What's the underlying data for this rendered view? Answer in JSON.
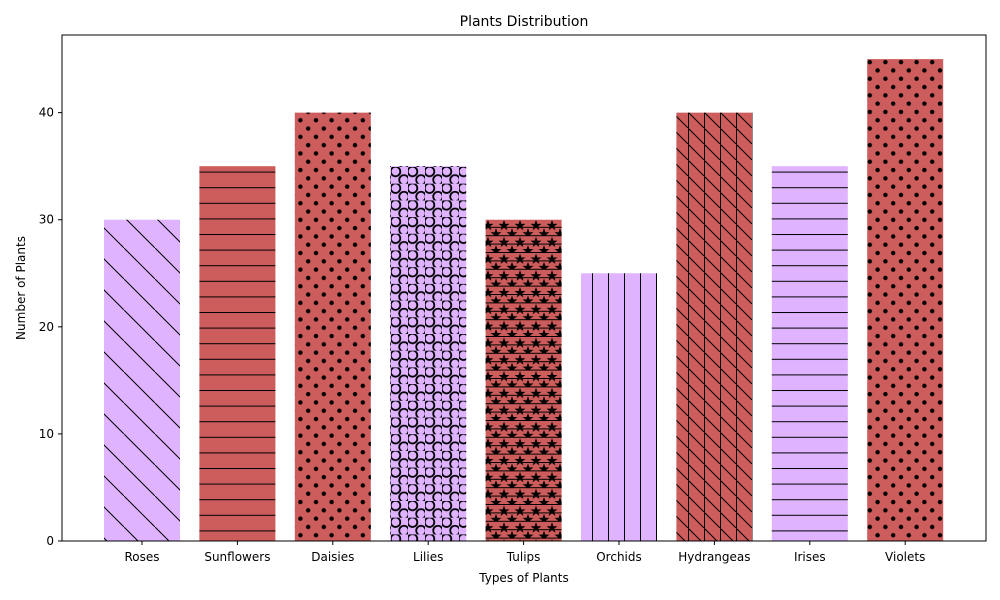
{
  "chart_data": {
    "type": "bar",
    "title": "Plants Distribution",
    "xlabel": "Types of Plants",
    "ylabel": "Number of Plants",
    "categories": [
      "Roses",
      "Sunflowers",
      "Daisies",
      "Lilies",
      "Tulips",
      "Orchids",
      "Hydrangeas",
      "Irises",
      "Violets"
    ],
    "values": [
      30,
      35,
      40,
      35,
      30,
      25,
      40,
      35,
      45
    ],
    "bar_colors": [
      "#dfb3ff",
      "#cd5c5c",
      "#cd5c5c",
      "#dfb3ff",
      "#cd5c5c",
      "#dfb3ff",
      "#cd5c5c",
      "#dfb3ff",
      "#cd5c5c"
    ],
    "hatches": [
      "diagonal-backslash",
      "horizontal",
      "dots",
      "circles",
      "stars-horizontal",
      "vertical",
      "vertical-backslash",
      "horizontal",
      "dots"
    ],
    "ylim": [
      0,
      47.25
    ],
    "yticks": [
      0,
      10,
      20,
      30,
      40
    ],
    "grid": false,
    "legend": "none"
  }
}
